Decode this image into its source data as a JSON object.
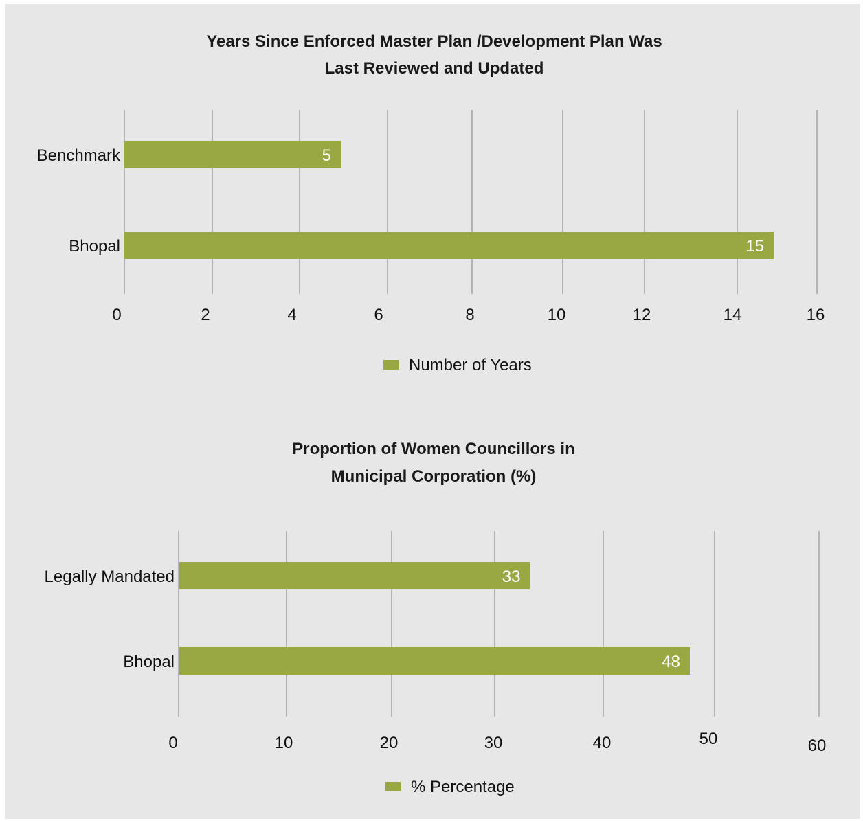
{
  "colors": {
    "bar": "#99a843",
    "gridline": "#9a9a9a",
    "background": "#e7e7e8"
  },
  "chart_data": [
    {
      "type": "bar",
      "orientation": "horizontal",
      "title_lines": [
        "Years Since Enforced Master Plan /Development Plan Was",
        "Last Reviewed and Updated"
      ],
      "categories": [
        "Benchmark",
        "Bhopal"
      ],
      "series": [
        {
          "name": "Number of Years",
          "values": [
            5,
            15
          ]
        }
      ],
      "data_labels": [
        "5",
        "15"
      ],
      "x_ticks": [
        "0",
        "2",
        "4",
        "6",
        "8",
        "10",
        "12",
        "14",
        "16"
      ],
      "xlim": [
        0,
        16
      ],
      "grid": true,
      "legend_position": "bottom"
    },
    {
      "type": "bar",
      "orientation": "horizontal",
      "title_lines": [
        "Proportion of Women Councillors in",
        "Municipal Corporation (%)"
      ],
      "categories": [
        "Legally Mandated",
        "Bhopal"
      ],
      "series": [
        {
          "name": "% Percentage",
          "values": [
            33,
            48
          ]
        }
      ],
      "data_labels": [
        "33",
        "48"
      ],
      "x_ticks": [
        "0",
        "10",
        "20",
        "30",
        "40",
        "50",
        "60"
      ],
      "xlim": [
        0,
        60
      ],
      "grid": true,
      "legend_position": "bottom"
    }
  ]
}
